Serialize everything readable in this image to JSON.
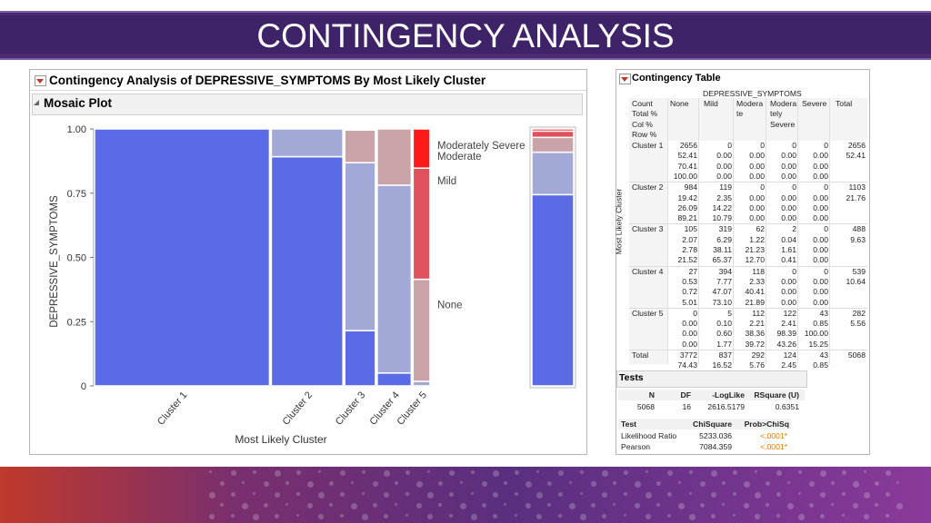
{
  "slide": {
    "title": "CONTINGENCY ANALYSIS"
  },
  "report": {
    "title": "Contingency Analysis of DEPRESSIVE_SYMPTOMS By Most Likely Cluster",
    "mosaic": {
      "title": "Mosaic Plot",
      "y_axis_label": "DEPRESSIVE_SYMPTOMS",
      "x_axis_label": "Most Likely Cluster",
      "y_ticks": [
        "0",
        "0.25",
        "0.50",
        "0.75",
        "1.00"
      ],
      "x_categories": [
        "Cluster 1",
        "Cluster 2",
        "Cluster 3",
        "Cluster 4",
        "Cluster 5"
      ],
      "legend_labels": [
        "Moderately Severe",
        "Moderate",
        "Mild",
        "None"
      ]
    }
  },
  "contingency_table": {
    "title": "Contingency Table",
    "column_var": "DEPRESSIVE_SYMPTOMS",
    "row_var": "Most Likely Cluster",
    "stat_labels": [
      "Count",
      "Total %",
      "Col %",
      "Row %"
    ],
    "columns": [
      "None",
      "Mild",
      "Modera te",
      "Modera tely Severe",
      "Severe",
      "Total"
    ],
    "rows": [
      {
        "label": "Cluster 1",
        "cells": [
          [
            "2656",
            "52.41",
            "70.41",
            "100.00"
          ],
          [
            "0",
            "0.00",
            "0.00",
            "0.00"
          ],
          [
            "0",
            "0.00",
            "0.00",
            "0.00"
          ],
          [
            "0",
            "0.00",
            "0.00",
            "0.00"
          ],
          [
            "0",
            "0.00",
            "0.00",
            "0.00"
          ],
          [
            "2656",
            "52.41",
            "",
            ""
          ]
        ]
      },
      {
        "label": "Cluster 2",
        "cells": [
          [
            "984",
            "19.42",
            "26.09",
            "89.21"
          ],
          [
            "119",
            "2.35",
            "14.22",
            "10.79"
          ],
          [
            "0",
            "0.00",
            "0.00",
            "0.00"
          ],
          [
            "0",
            "0.00",
            "0.00",
            "0.00"
          ],
          [
            "0",
            "0.00",
            "0.00",
            "0.00"
          ],
          [
            "1103",
            "21.76",
            "",
            ""
          ]
        ]
      },
      {
        "label": "Cluster 3",
        "cells": [
          [
            "105",
            "2.07",
            "2.78",
            "21.52"
          ],
          [
            "319",
            "6.29",
            "38.11",
            "65.37"
          ],
          [
            "62",
            "1.22",
            "21.23",
            "12.70"
          ],
          [
            "2",
            "0.04",
            "1.61",
            "0.41"
          ],
          [
            "0",
            "0.00",
            "0.00",
            "0.00"
          ],
          [
            "488",
            "9.63",
            "",
            ""
          ]
        ]
      },
      {
        "label": "Cluster 4",
        "cells": [
          [
            "27",
            "0.53",
            "0.72",
            "5.01"
          ],
          [
            "394",
            "7.77",
            "47.07",
            "73.10"
          ],
          [
            "118",
            "2.33",
            "40.41",
            "21.89"
          ],
          [
            "0",
            "0.00",
            "0.00",
            "0.00"
          ],
          [
            "0",
            "0.00",
            "0.00",
            "0.00"
          ],
          [
            "539",
            "10.64",
            "",
            ""
          ]
        ]
      },
      {
        "label": "Cluster 5",
        "cells": [
          [
            "0",
            "0.00",
            "0.00",
            "0.00"
          ],
          [
            "5",
            "0.10",
            "0.60",
            "1.77"
          ],
          [
            "112",
            "2.21",
            "38.36",
            "39.72"
          ],
          [
            "122",
            "2.41",
            "98.39",
            "43.26"
          ],
          [
            "43",
            "0.85",
            "100.00",
            "15.25"
          ],
          [
            "282",
            "5.56",
            "",
            ""
          ]
        ]
      }
    ],
    "total_row": {
      "label": "Total",
      "cells": [
        [
          "3772",
          "74.43"
        ],
        [
          "837",
          "16.52"
        ],
        [
          "292",
          "5.76"
        ],
        [
          "124",
          "2.45"
        ],
        [
          "43",
          "0.85"
        ],
        [
          "5068",
          ""
        ]
      ]
    }
  },
  "tests": {
    "title": "Tests",
    "summary_headers": [
      "N",
      "DF",
      "-LogLike",
      "RSquare (U)"
    ],
    "summary_values": [
      "5068",
      "16",
      "2616.5179",
      "0.6351"
    ],
    "test_headers": [
      "Test",
      "ChiSquare",
      "Prob>ChiSq"
    ],
    "test_rows": [
      {
        "test": "Likelihood Ratio",
        "chisq": "5233.036",
        "prob": "<.0001*"
      },
      {
        "test": "Pearson",
        "chisq": "7084.359",
        "prob": "<.0001*"
      }
    ]
  },
  "colors": {
    "none": "#5b6be6",
    "mild": "#a3a9d6",
    "moderate": "#c9a3a8",
    "moderately_severe": "#e0525b",
    "severe": "#ff1a1a",
    "prob_value": "#e07b00"
  }
}
